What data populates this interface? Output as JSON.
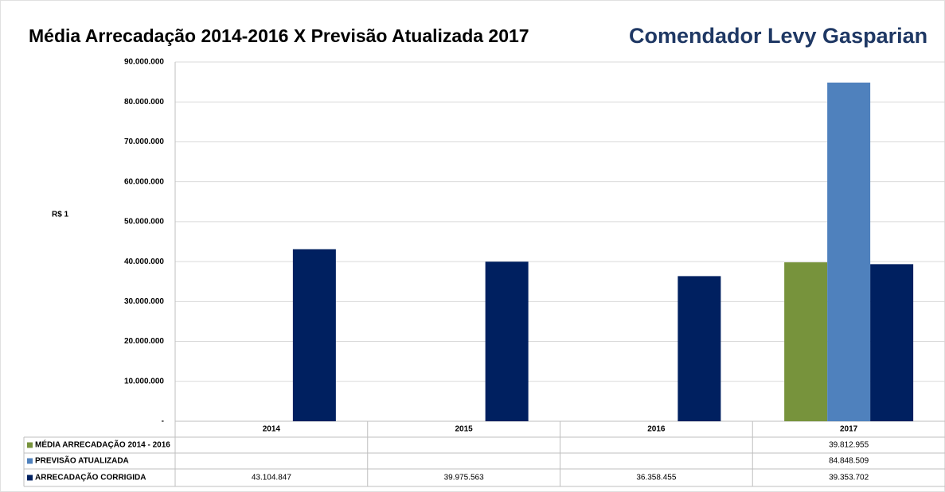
{
  "chart_data": {
    "type": "bar",
    "title": "Média Arrecadação 2014-2016 X Previsão Atualizada 2017",
    "subtitle": "Comendador Levy Gasparian",
    "y_label": "R$ 1",
    "categories": [
      "2014",
      "2015",
      "2016",
      "2017"
    ],
    "series": [
      {
        "name": "MÉDIA ARRECADAÇÃO 2014 - 2016",
        "color": "#77933c",
        "values": [
          null,
          null,
          null,
          39812955
        ],
        "value_labels": [
          null,
          null,
          null,
          "39.812.955"
        ]
      },
      {
        "name": "PREVISÃO ATUALIZADA",
        "color": "#4f81bd",
        "values": [
          null,
          null,
          null,
          84848509
        ],
        "value_labels": [
          null,
          null,
          null,
          "84.848.509"
        ]
      },
      {
        "name": "ARRECADAÇÃO CORRIGIDA",
        "color": "#002060",
        "values": [
          43104847,
          39975563,
          36358455,
          39353702
        ],
        "value_labels": [
          "43.104.847",
          "39.975.563",
          "36.358.455",
          "39.353.702"
        ]
      }
    ],
    "ylim": [
      0,
      90000000
    ],
    "yticks": [
      {
        "value": 0,
        "label": "-"
      },
      {
        "value": 10000000,
        "label": "10.000.000"
      },
      {
        "value": 20000000,
        "label": "20.000.000"
      },
      {
        "value": 30000000,
        "label": "30.000.000"
      },
      {
        "value": 40000000,
        "label": "40.000.000"
      },
      {
        "value": 50000000,
        "label": "50.000.000"
      },
      {
        "value": 60000000,
        "label": "60.000.000"
      },
      {
        "value": 70000000,
        "label": "70.000.000"
      },
      {
        "value": 80000000,
        "label": "80.000.000"
      },
      {
        "value": 90000000,
        "label": "90.000.000"
      }
    ],
    "grid": true
  }
}
